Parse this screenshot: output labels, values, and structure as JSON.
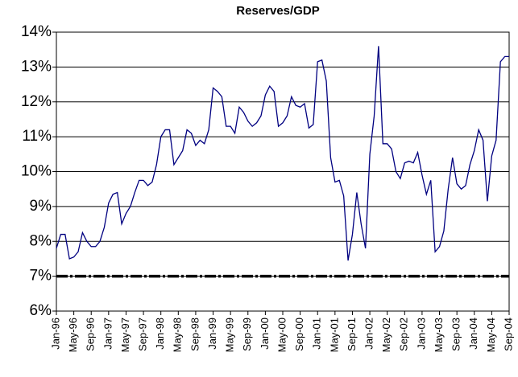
{
  "chart_data": {
    "type": "line",
    "title": "Reserves/GDP",
    "categories": [
      "Jan-96",
      null,
      null,
      null,
      "May-96",
      null,
      null,
      null,
      "Sep-96",
      null,
      null,
      null,
      "Jan-97",
      null,
      null,
      null,
      "May-97",
      null,
      null,
      null,
      "Sep-97",
      null,
      null,
      null,
      "Jan-98",
      null,
      null,
      null,
      "May-98",
      null,
      null,
      null,
      "Sep-98",
      null,
      null,
      null,
      "Jan-99",
      null,
      null,
      null,
      "May-99",
      null,
      null,
      null,
      "Sep-99",
      null,
      null,
      null,
      "Jan-00",
      null,
      null,
      null,
      "May-00",
      null,
      null,
      null,
      "Sep-00",
      null,
      null,
      null,
      "Jan-01",
      null,
      null,
      null,
      "May-01",
      null,
      null,
      null,
      "Sep-01",
      null,
      null,
      null,
      "Jan-02",
      null,
      null,
      null,
      "May-02",
      null,
      null,
      null,
      "Sep-02",
      null,
      null,
      null,
      "Jan-03",
      null,
      null,
      null,
      "May-03",
      null,
      null,
      null,
      "Sep-03",
      null,
      null,
      null,
      "Jan-04",
      null,
      null,
      null,
      "May-04",
      null,
      null,
      null,
      "Sep-04"
    ],
    "series": [
      {
        "color": "#000080",
        "values": [
          7.8,
          8.2,
          8.2,
          7.5,
          7.55,
          7.7,
          8.25,
          8.0,
          7.85,
          7.85,
          8.0,
          8.4,
          9.1,
          9.35,
          9.4,
          8.5,
          8.8,
          9.0,
          9.4,
          9.75,
          9.75,
          9.6,
          9.7,
          10.2,
          11.0,
          11.2,
          11.2,
          10.2,
          10.4,
          10.6,
          11.2,
          11.1,
          10.75,
          10.9,
          10.8,
          11.2,
          12.4,
          12.3,
          12.15,
          11.3,
          11.3,
          11.1,
          11.85,
          11.7,
          11.45,
          11.3,
          11.4,
          11.6,
          12.2,
          12.45,
          12.3,
          11.3,
          11.4,
          11.6,
          12.15,
          11.9,
          11.85,
          11.95,
          11.25,
          11.35,
          13.15,
          13.2,
          12.6,
          10.4,
          9.7,
          9.75,
          9.3,
          7.45,
          8.2,
          9.4,
          8.5,
          7.8,
          10.5,
          11.6,
          13.6,
          10.8,
          10.8,
          10.65,
          10.0,
          9.8,
          10.25,
          10.3,
          10.25,
          10.55,
          9.9,
          9.35,
          9.75,
          7.7,
          7.85,
          8.3,
          9.5,
          10.4,
          9.65,
          9.5,
          9.6,
          10.2,
          10.6,
          11.2,
          10.9,
          9.15,
          10.45,
          10.9,
          13.15,
          13.3,
          13.3
        ]
      }
    ],
    "reference_line": {
      "value": 7,
      "color": "#000000"
    },
    "ylim": [
      6,
      14
    ],
    "yticks": [
      {
        "value": 6,
        "label": "6%"
      },
      {
        "value": 7,
        "label": "7%"
      },
      {
        "value": 8,
        "label": "8%"
      },
      {
        "value": 9,
        "label": "9%"
      },
      {
        "value": 10,
        "label": "10%"
      },
      {
        "value": 11,
        "label": "11%"
      },
      {
        "value": 12,
        "label": "12%"
      },
      {
        "value": 13,
        "label": "13%"
      },
      {
        "value": 14,
        "label": "14%"
      }
    ],
    "grid": true
  }
}
